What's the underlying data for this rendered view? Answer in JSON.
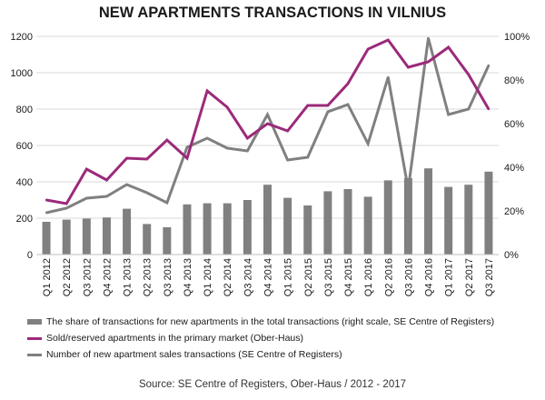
{
  "colors": {
    "bar": "#808080",
    "primary_line": "#9b2a7a",
    "transactions_line": "#808080",
    "grid": "#d9d9d9",
    "axis_text": "#1a1a1a"
  },
  "source_text": "Source: SE Centre of Registers, Ober-Haus  / 2012 - 2017",
  "chart_data": {
    "type": "bar",
    "title": "NEW APARTMENTS TRANSACTIONS IN VILNIUS",
    "categories": [
      "Q1 2012",
      "Q2 2012",
      "Q3 2012",
      "Q4 2012",
      "Q1 2013",
      "Q2 2013",
      "Q3 2013",
      "Q4 2013",
      "Q1 2014",
      "Q2 2014",
      "Q3 2014",
      "Q4 2014",
      "Q1 2015",
      "Q2 2015",
      "Q3 2015",
      "Q4 2015",
      "Q1 2016",
      "Q2 2016",
      "Q3 2016",
      "Q4 2016",
      "Q1 2017",
      "Q2 2017",
      "Q3 2017"
    ],
    "ylim_left": [
      0,
      1200
    ],
    "yticks_left": [
      "0",
      "200",
      "400",
      "600",
      "800",
      "1000",
      "1200"
    ],
    "ylim_right": [
      0,
      1
    ],
    "yticks_right": [
      "0%",
      "20%",
      "40%",
      "60%",
      "80%",
      "100%"
    ],
    "grid": true,
    "legend_position": "bottom",
    "series": [
      {
        "name": "The share of transactions for new apartments in the total transactions (right scale, SE Centre of Registers)",
        "type": "bar",
        "axis": "right",
        "values": [
          0.15,
          0.16,
          0.165,
          0.17,
          0.21,
          0.14,
          0.125,
          0.23,
          0.235,
          0.235,
          0.25,
          0.32,
          0.26,
          0.225,
          0.29,
          0.3,
          0.265,
          0.34,
          0.35,
          0.395,
          0.31,
          0.32,
          0.38
        ]
      },
      {
        "name": "Sold/reserved apartments in the primary market (Ober-Haus)",
        "type": "line",
        "axis": "left",
        "values": [
          300,
          280,
          470,
          410,
          530,
          525,
          630,
          530,
          900,
          810,
          640,
          720,
          680,
          820,
          820,
          940,
          1130,
          1180,
          1030,
          1060,
          1140,
          990,
          800
        ]
      },
      {
        "name": "Number of new apartment sales transactions (SE Centre of Registers)",
        "type": "line",
        "axis": "left",
        "values": [
          230,
          255,
          310,
          320,
          385,
          340,
          285,
          590,
          640,
          585,
          570,
          770,
          520,
          535,
          785,
          825,
          610,
          975,
          360,
          1190,
          770,
          800,
          1040
        ]
      }
    ]
  }
}
